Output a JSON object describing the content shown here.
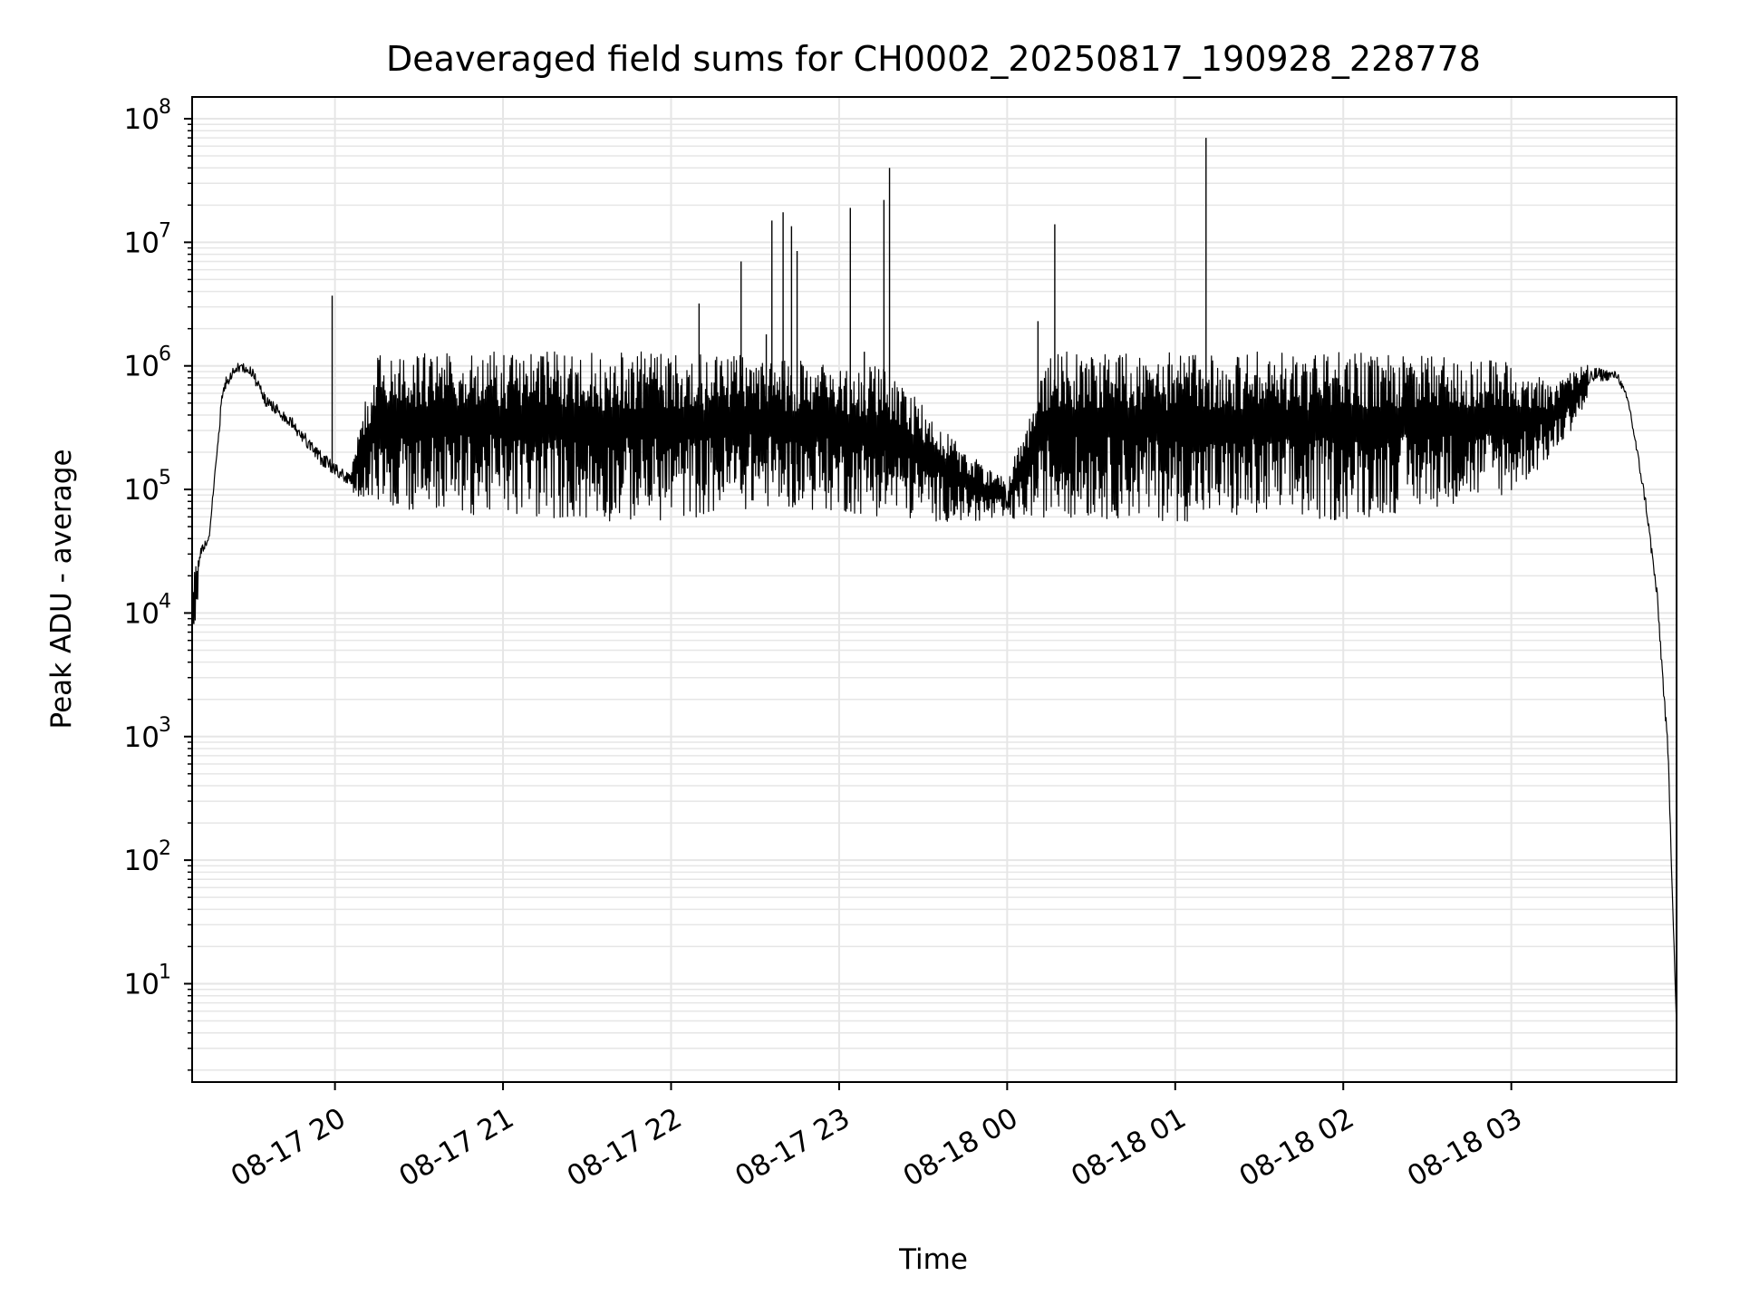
{
  "chart_data": {
    "type": "line",
    "title": "Deaveraged field sums for CH0002_20250817_190928_228778",
    "xlabel": "Time",
    "ylabel": "Peak ADU - average",
    "yscale": "log",
    "grid": true,
    "line_color": "#000000",
    "grid_color": "#e6e6e6",
    "xlim": [
      "2025-08-17 19:09",
      "2025-08-18 03:59"
    ],
    "ylim": [
      1.6,
      150000000
    ],
    "x_ticks": [
      {
        "t": "2025-08-17 20:00",
        "label": "08-17 20"
      },
      {
        "t": "2025-08-17 21:00",
        "label": "08-17 21"
      },
      {
        "t": "2025-08-17 22:00",
        "label": "08-17 22"
      },
      {
        "t": "2025-08-17 23:00",
        "label": "08-17 23"
      },
      {
        "t": "2025-08-18 00:00",
        "label": "08-18 00"
      },
      {
        "t": "2025-08-18 01:00",
        "label": "08-18 01"
      },
      {
        "t": "2025-08-18 02:00",
        "label": "08-18 02"
      },
      {
        "t": "2025-08-18 03:00",
        "label": "08-18 03"
      }
    ],
    "y_ticks": [
      {
        "v": 10,
        "label": "10",
        "exp": "1"
      },
      {
        "v": 100,
        "label": "10",
        "exp": "2"
      },
      {
        "v": 1000,
        "label": "10",
        "exp": "3"
      },
      {
        "v": 10000,
        "label": "10",
        "exp": "4"
      },
      {
        "v": 100000,
        "label": "10",
        "exp": "5"
      },
      {
        "v": 1000000,
        "label": "10",
        "exp": "6"
      },
      {
        "v": 10000000,
        "label": "10",
        "exp": "7"
      },
      {
        "v": 100000000,
        "label": "10",
        "exp": "8"
      }
    ],
    "envelope": [
      {
        "t": "2025-08-17 19:09",
        "hi": 20000,
        "lo": 3500
      },
      {
        "t": "2025-08-17 19:12",
        "hi": 40000,
        "lo": 25000
      },
      {
        "t": "2025-08-17 19:15",
        "hi": 45000,
        "lo": 35000
      },
      {
        "t": "2025-08-17 19:20",
        "hi": 900000,
        "lo": 500000
      },
      {
        "t": "2025-08-17 19:25",
        "hi": 1200000,
        "lo": 800000
      },
      {
        "t": "2025-08-17 19:30",
        "hi": 1200000,
        "lo": 700000
      },
      {
        "t": "2025-08-17 19:35",
        "hi": 700000,
        "lo": 400000
      },
      {
        "t": "2025-08-17 19:45",
        "hi": 450000,
        "lo": 250000
      },
      {
        "t": "2025-08-17 19:55",
        "hi": 250000,
        "lo": 130000
      },
      {
        "t": "2025-08-17 20:05",
        "hi": 160000,
        "lo": 90000
      },
      {
        "t": "2025-08-17 20:15",
        "hi": 1200000,
        "lo": 70000
      },
      {
        "t": "2025-08-17 20:30",
        "hi": 1300000,
        "lo": 65000
      },
      {
        "t": "2025-08-17 21:00",
        "hi": 1300000,
        "lo": 60000
      },
      {
        "t": "2025-08-17 21:30",
        "hi": 1300000,
        "lo": 55000
      },
      {
        "t": "2025-08-17 22:00",
        "hi": 1300000,
        "lo": 55000
      },
      {
        "t": "2025-08-17 22:30",
        "hi": 1200000,
        "lo": 70000
      },
      {
        "t": "2025-08-17 22:45",
        "hi": 1100000,
        "lo": 70000
      },
      {
        "t": "2025-08-17 23:15",
        "hi": 1000000,
        "lo": 60000
      },
      {
        "t": "2025-08-17 23:30",
        "hi": 500000,
        "lo": 55000
      },
      {
        "t": "2025-08-17 23:45",
        "hi": 200000,
        "lo": 55000
      },
      {
        "t": "2025-08-18 00:00",
        "hi": 120000,
        "lo": 55000
      },
      {
        "t": "2025-08-18 00:15",
        "hi": 1300000,
        "lo": 60000
      },
      {
        "t": "2025-08-18 01:00",
        "hi": 1300000,
        "lo": 55000
      },
      {
        "t": "2025-08-18 01:30",
        "hi": 1300000,
        "lo": 55000
      },
      {
        "t": "2025-08-18 02:00",
        "hi": 1300000,
        "lo": 55000
      },
      {
        "t": "2025-08-18 02:30",
        "hi": 1200000,
        "lo": 70000
      },
      {
        "t": "2025-08-18 03:00",
        "hi": 1100000,
        "lo": 90000
      },
      {
        "t": "2025-08-18 03:15",
        "hi": 700000,
        "lo": 180000
      },
      {
        "t": "2025-08-18 03:30",
        "hi": 1200000,
        "lo": 600000
      },
      {
        "t": "2025-08-18 03:38",
        "hi": 1000000,
        "lo": 700000
      },
      {
        "t": "2025-08-18 03:42",
        "hi": 600000,
        "lo": 400000
      },
      {
        "t": "2025-08-18 03:48",
        "hi": 100000,
        "lo": 60000
      },
      {
        "t": "2025-08-18 03:52",
        "hi": 20000,
        "lo": 10000
      },
      {
        "t": "2025-08-18 03:56",
        "hi": 1000,
        "lo": 500
      },
      {
        "t": "2025-08-18 03:59",
        "hi": 5,
        "lo": 4
      }
    ],
    "spikes": [
      {
        "t": "2025-08-17 19:59",
        "v": 3700000
      },
      {
        "t": "2025-08-17 22:10",
        "v": 3200000
      },
      {
        "t": "2025-08-17 22:25",
        "v": 7000000
      },
      {
        "t": "2025-08-17 22:34",
        "v": 1800000
      },
      {
        "t": "2025-08-17 22:36",
        "v": 15000000
      },
      {
        "t": "2025-08-17 22:40",
        "v": 17500000
      },
      {
        "t": "2025-08-17 22:43",
        "v": 13500000
      },
      {
        "t": "2025-08-17 22:45",
        "v": 8500000
      },
      {
        "t": "2025-08-17 23:04",
        "v": 19000000
      },
      {
        "t": "2025-08-17 23:09",
        "v": 1300000
      },
      {
        "t": "2025-08-17 23:16",
        "v": 22000000
      },
      {
        "t": "2025-08-17 23:18",
        "v": 40000000
      },
      {
        "t": "2025-08-18 00:11",
        "v": 2300000
      },
      {
        "t": "2025-08-18 00:17",
        "v": 14000000
      },
      {
        "t": "2025-08-18 01:11",
        "v": 70000000
      }
    ]
  }
}
